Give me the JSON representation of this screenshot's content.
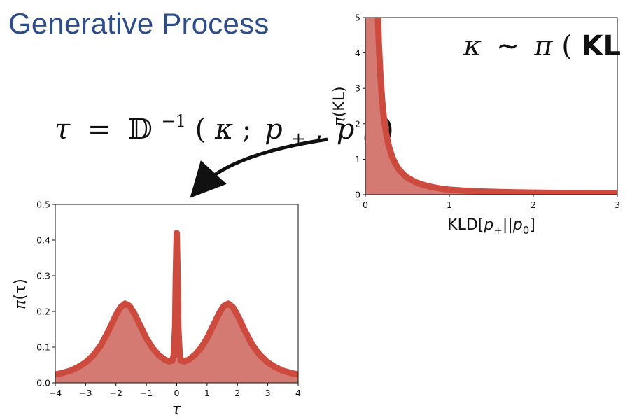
{
  "slide": {
    "title": "Generative Process",
    "inverse_equation": {
      "lhs": "τ",
      "eq": "=",
      "D": "𝔻",
      "sup": "−1",
      "open": "(",
      "kappa": "κ",
      "semi": ";",
      "p1": "p",
      "p1_sub": "+",
      "comma": ",",
      "p2": "p",
      "p2_sub": "0",
      "close": ")"
    }
  },
  "colors": {
    "curve": "#cd4a3e",
    "fill": "#d47a72",
    "title": "#2d4d8a",
    "arrow": "#111111"
  },
  "chart_data": [
    {
      "type": "area",
      "annotation": {
        "kappa": "κ",
        "sim": "∼",
        "pi": "π",
        "open": "(",
        "kl": "KL",
        "close": ")"
      },
      "xlabel": {
        "base": "KLD[",
        "p1": "p",
        "p1_sub": "+",
        "mid": "||",
        "p2": "p",
        "p2_sub": "0",
        "end": "]"
      },
      "ylabel": {
        "pi": "π",
        "arg": "(KL)"
      },
      "xlim": [
        0,
        3
      ],
      "ylim": [
        0,
        5
      ],
      "xticks": [
        "0",
        "1",
        "2",
        "3"
      ],
      "yticks": [
        "0",
        "1",
        "2",
        "3",
        "4",
        "5"
      ],
      "grid": false,
      "series": [
        {
          "x": [
            0.15,
            0.16,
            0.18,
            0.2,
            0.22,
            0.25,
            0.28,
            0.32,
            0.36,
            0.4,
            0.45,
            0.5,
            0.6,
            0.7,
            0.8,
            0.9,
            1.0,
            1.2,
            1.4,
            1.6,
            1.8,
            2.0,
            2.2,
            2.4,
            2.6,
            2.8,
            3.0
          ],
          "y": [
            5.0,
            4.28,
            3.31,
            2.65,
            2.17,
            1.69,
            1.36,
            1.06,
            0.86,
            0.71,
            0.58,
            0.48,
            0.35,
            0.27,
            0.21,
            0.17,
            0.14,
            0.11,
            0.09,
            0.075,
            0.065,
            0.058,
            0.052,
            0.048,
            0.044,
            0.041,
            0.038
          ]
        }
      ]
    },
    {
      "type": "area",
      "xlabel": "τ",
      "ylabel": {
        "pi": "π",
        "arg": "(τ)"
      },
      "xlim": [
        -4,
        4
      ],
      "ylim": [
        0,
        0.5
      ],
      "xticks": [
        "−4",
        "−3",
        "−2",
        "−1",
        "0",
        "1",
        "2",
        "3",
        "4"
      ],
      "yticks": [
        "0.0",
        "0.1",
        "0.2",
        "0.3",
        "0.4",
        "0.5"
      ],
      "grid": false,
      "series": [
        {
          "x": [
            -4.0,
            -3.75,
            -3.5,
            -3.25,
            -3.0,
            -2.75,
            -2.5,
            -2.25,
            -2.0,
            -1.85,
            -1.7,
            -1.55,
            -1.4,
            -1.2,
            -1.0,
            -0.8,
            -0.6,
            -0.4,
            -0.25,
            -0.15,
            -0.1,
            -0.05,
            -0.03,
            0.0,
            0.03,
            0.05,
            0.1,
            0.15,
            0.25,
            0.4,
            0.6,
            0.8,
            1.0,
            1.2,
            1.4,
            1.55,
            1.7,
            1.85,
            2.0,
            2.25,
            2.5,
            2.75,
            3.0,
            3.25,
            3.5,
            3.75,
            4.0
          ],
          "y": [
            0.023,
            0.028,
            0.034,
            0.044,
            0.057,
            0.077,
            0.105,
            0.145,
            0.19,
            0.212,
            0.222,
            0.215,
            0.195,
            0.16,
            0.125,
            0.098,
            0.078,
            0.065,
            0.06,
            0.062,
            0.075,
            0.16,
            0.3,
            0.42,
            0.3,
            0.16,
            0.075,
            0.062,
            0.06,
            0.065,
            0.078,
            0.098,
            0.125,
            0.16,
            0.195,
            0.215,
            0.222,
            0.212,
            0.19,
            0.145,
            0.105,
            0.077,
            0.057,
            0.044,
            0.034,
            0.028,
            0.023
          ]
        }
      ]
    }
  ]
}
